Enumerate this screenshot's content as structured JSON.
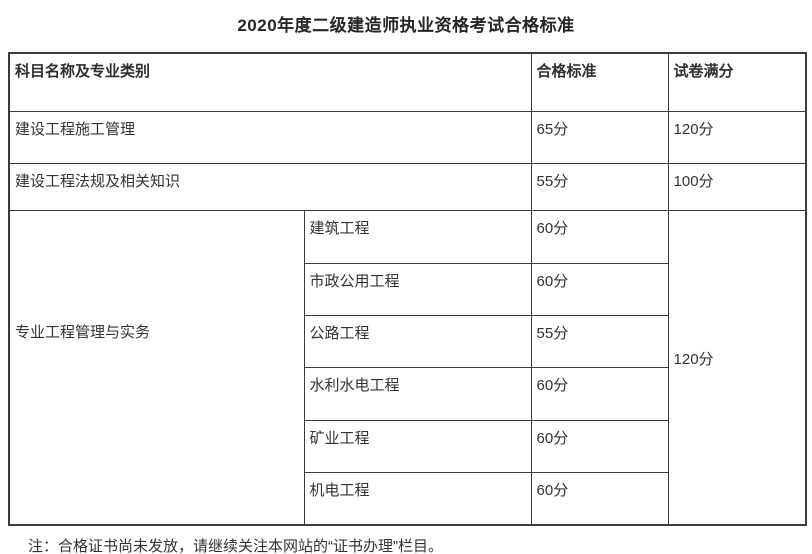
{
  "page": {
    "title": "2020年度二级建造师执业资格考试合格标准",
    "note": "注：合格证书尚未发放，请继续关注本网站的“证书办理”栏目。"
  },
  "colors": {
    "background": "#ffffff",
    "border": "#3b3b3b",
    "text": "#333333",
    "title_text": "#262626"
  },
  "table": {
    "headers": [
      "科目名称及专业类别",
      "合格标准",
      "试卷满分"
    ],
    "rows": [
      {
        "subject": "建设工程施工管理",
        "pass_score": "65分",
        "full_score": "120分"
      },
      {
        "subject": "建设工程法规及相关知识",
        "pass_score": "55分",
        "full_score": "100分"
      }
    ],
    "practice_group": {
      "subject": "专业工程管理与实务",
      "full_score": "120分",
      "specialties": [
        {
          "name": "建筑工程",
          "pass_score": "60分"
        },
        {
          "name": "市政公用工程",
          "pass_score": "60分"
        },
        {
          "name": "公路工程",
          "pass_score": "55分"
        },
        {
          "name": "水利水电工程",
          "pass_score": "60分"
        },
        {
          "name": "矿业工程",
          "pass_score": "60分"
        },
        {
          "name": "机电工程",
          "pass_score": "60分"
        }
      ]
    }
  }
}
